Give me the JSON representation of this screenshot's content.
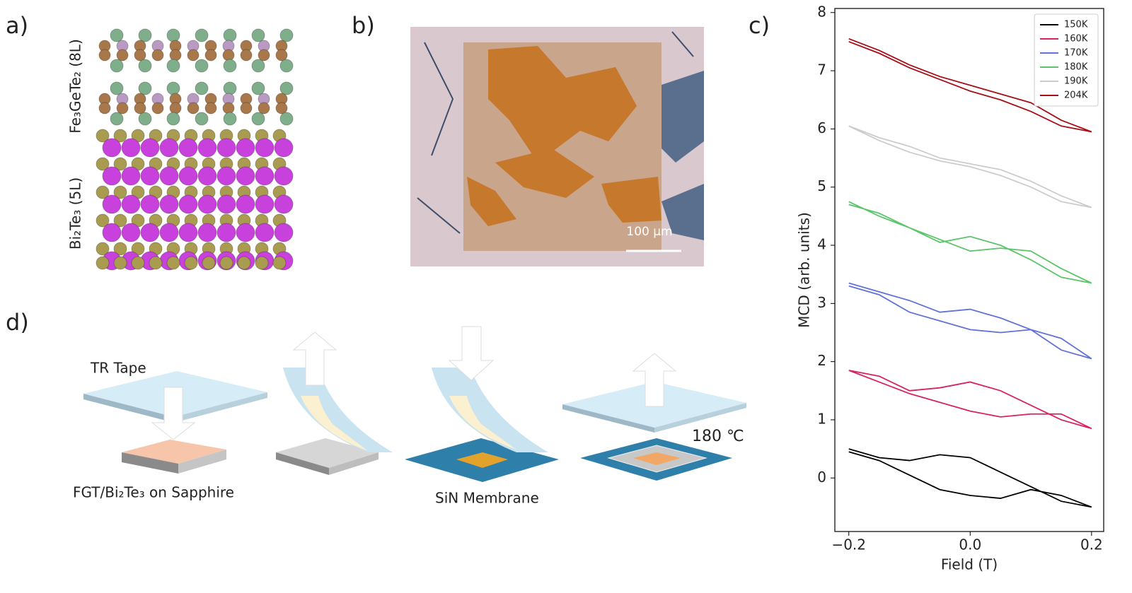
{
  "panels": {
    "a": {
      "label": "a)",
      "top_label": "Fe₃GeTe₂ (8L)",
      "bottom_label": "Bi₂Te₃ (5L)"
    },
    "b": {
      "label": "b)",
      "scale_bar": "100 μm"
    },
    "c": {
      "label": "c)"
    },
    "d": {
      "label": "d)",
      "tape": "TR Tape",
      "substrate": "FGT/Bi₂Te₃ on Sapphire",
      "membrane": "SiN Membrane",
      "temperature": "180 ℃"
    }
  },
  "chart_data": {
    "type": "line",
    "xlabel": "Field (T)",
    "ylabel": "MCD (arb. units)",
    "x": [
      -0.2,
      -0.15,
      -0.1,
      -0.05,
      0,
      0.05,
      0.1,
      0.15,
      0.2,
      0.15,
      0.1,
      0.05,
      0,
      -0.05,
      -0.1,
      -0.15,
      -0.2
    ],
    "series": [
      {
        "name": "150K",
        "color": "#000000",
        "values": [
          0.45,
          0.3,
          0.05,
          -0.2,
          -0.3,
          -0.35,
          -0.2,
          -0.3,
          -0.5,
          -0.4,
          -0.15,
          0.1,
          0.35,
          0.4,
          0.3,
          0.35,
          0.5
        ]
      },
      {
        "name": "160K",
        "color": "#d6245c",
        "values": [
          1.85,
          1.65,
          1.45,
          1.3,
          1.15,
          1.05,
          1.1,
          1.1,
          0.85,
          1.0,
          1.25,
          1.5,
          1.65,
          1.55,
          1.5,
          1.75,
          1.85
        ]
      },
      {
        "name": "170K",
        "color": "#6272d6",
        "values": [
          3.3,
          3.15,
          2.85,
          2.7,
          2.55,
          2.5,
          2.55,
          2.4,
          2.05,
          2.2,
          2.55,
          2.75,
          2.9,
          2.85,
          3.05,
          3.2,
          3.35
        ]
      },
      {
        "name": "180K",
        "color": "#5cc46a",
        "values": [
          4.7,
          4.55,
          4.3,
          4.1,
          3.9,
          3.95,
          3.9,
          3.6,
          3.35,
          3.45,
          3.75,
          4.0,
          4.15,
          4.05,
          4.3,
          4.5,
          4.75
        ]
      },
      {
        "name": "190K",
        "color": "#cccccc",
        "values": [
          6.05,
          5.85,
          5.7,
          5.5,
          5.4,
          5.3,
          5.1,
          4.85,
          4.65,
          4.75,
          5.0,
          5.2,
          5.35,
          5.45,
          5.6,
          5.8,
          6.05
        ]
      },
      {
        "name": "204K",
        "color": "#a50f15",
        "values": [
          7.55,
          7.35,
          7.1,
          6.9,
          6.75,
          6.6,
          6.45,
          6.15,
          5.95,
          6.05,
          6.3,
          6.5,
          6.65,
          6.85,
          7.05,
          7.3,
          7.5
        ]
      }
    ],
    "xlim": [
      -0.223,
      0.22
    ],
    "ylim": [
      -0.92,
      8.07
    ],
    "xticks": [
      {
        "value": -0.2,
        "label": "−0.2"
      },
      {
        "value": 0,
        "label": "0.0"
      },
      {
        "value": 0.2,
        "label": "0.2"
      }
    ],
    "yticks": [
      0,
      1,
      2,
      3,
      4,
      5,
      6,
      7,
      8
    ],
    "legend": "upper right",
    "grid": false
  }
}
